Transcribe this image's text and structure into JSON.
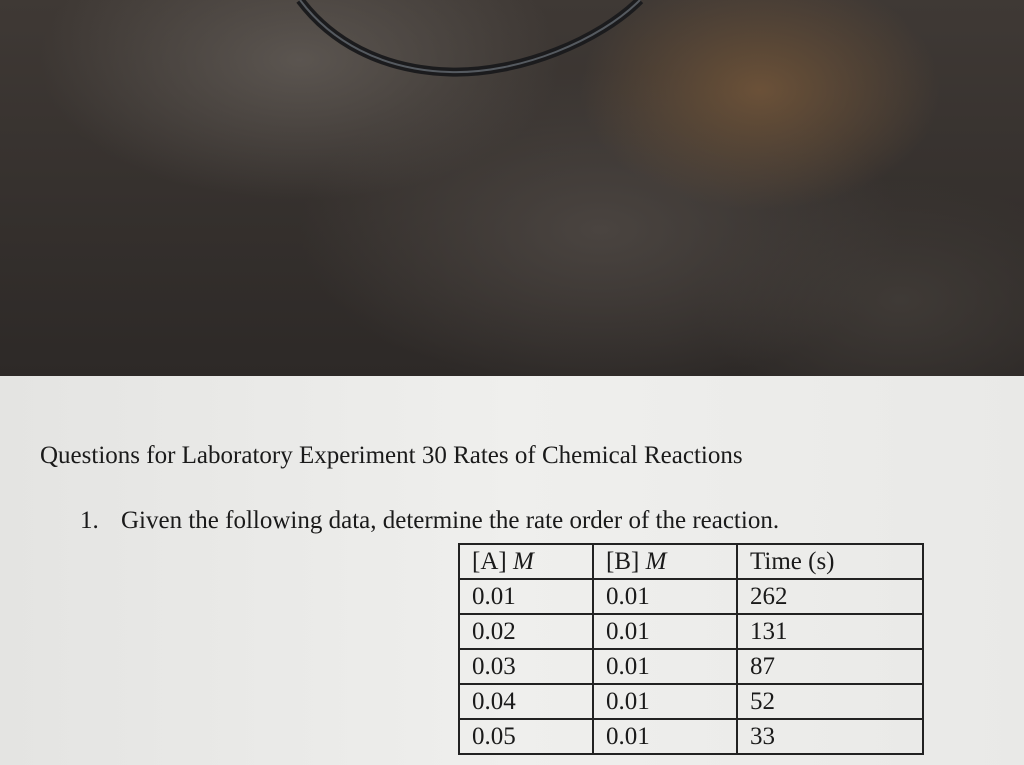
{
  "document": {
    "title": "Questions for Laboratory Experiment 30 Rates of Chemical Reactions",
    "question": {
      "number": "1.",
      "text": "Given the following data, determine the rate order of the reaction."
    },
    "table": {
      "header": [
        {
          "label": "[A]",
          "unit": "M"
        },
        {
          "label": "[B]",
          "unit": "M"
        },
        {
          "label": "Time (s)"
        }
      ],
      "rows": [
        [
          "0.01",
          "0.01",
          "262"
        ],
        [
          "0.02",
          "0.01",
          "131"
        ],
        [
          "0.03",
          "0.01",
          "87"
        ],
        [
          "0.04",
          "0.01",
          "52"
        ],
        [
          "0.05",
          "0.01",
          "33"
        ]
      ]
    }
  }
}
